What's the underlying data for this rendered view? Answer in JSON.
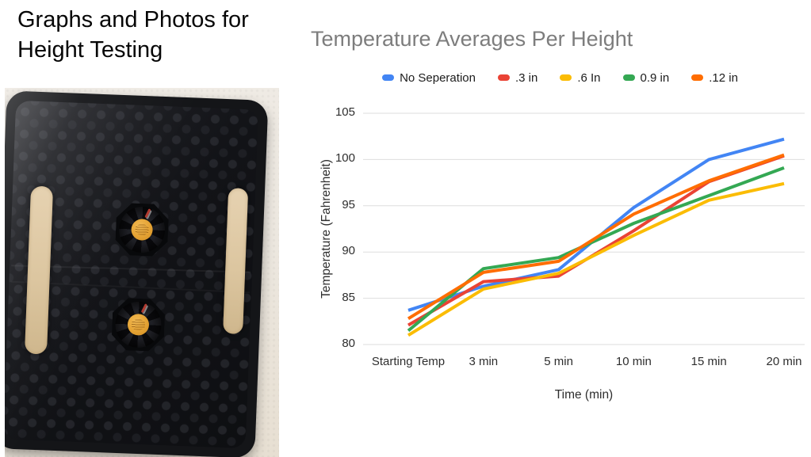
{
  "slide": {
    "title": "Graphs and Photos for\nHeight Testing"
  },
  "photo": {
    "description": "Top-down photo of a black 3D-printed honeycomb-textured tray mounted on a white textured wall, holding two small cooling fans with orange hub labels and red wires, flanked by two wooden craft sticks along the left and right edges"
  },
  "chart_data": {
    "type": "line",
    "title": "Temperature Averages Per Height",
    "xlabel": "Time (min)",
    "ylabel": "Temperature (Fahrenheit)",
    "categories": [
      "Starting Temp",
      "3 min",
      "5 min",
      "10 min",
      "15 min",
      "20 min"
    ],
    "yticks": [
      105,
      100,
      95,
      90,
      85,
      80
    ],
    "ylim": [
      80,
      105
    ],
    "grid": true,
    "legend_position": "top",
    "gridline_color": "#dedede",
    "series": [
      {
        "name": "No Seperation",
        "color": "#4285F4",
        "values": [
          83.7,
          86.3,
          88.1,
          94.8,
          100.0,
          102.2
        ]
      },
      {
        "name": ".3 in",
        "color": "#EA4335",
        "values": [
          82.1,
          86.8,
          87.4,
          92.3,
          97.6,
          100.4
        ]
      },
      {
        "name": ".6 In",
        "color": "#FBBC04",
        "values": [
          81.0,
          86.0,
          87.7,
          91.8,
          95.6,
          97.4
        ]
      },
      {
        "name": "0.9 in",
        "color": "#34A853",
        "values": [
          81.5,
          88.2,
          89.4,
          93.1,
          96.1,
          99.1
        ]
      },
      {
        "name": ".12 in",
        "color": "#FF6D01",
        "values": [
          82.8,
          87.8,
          89.0,
          94.1,
          97.7,
          100.5
        ]
      }
    ]
  }
}
